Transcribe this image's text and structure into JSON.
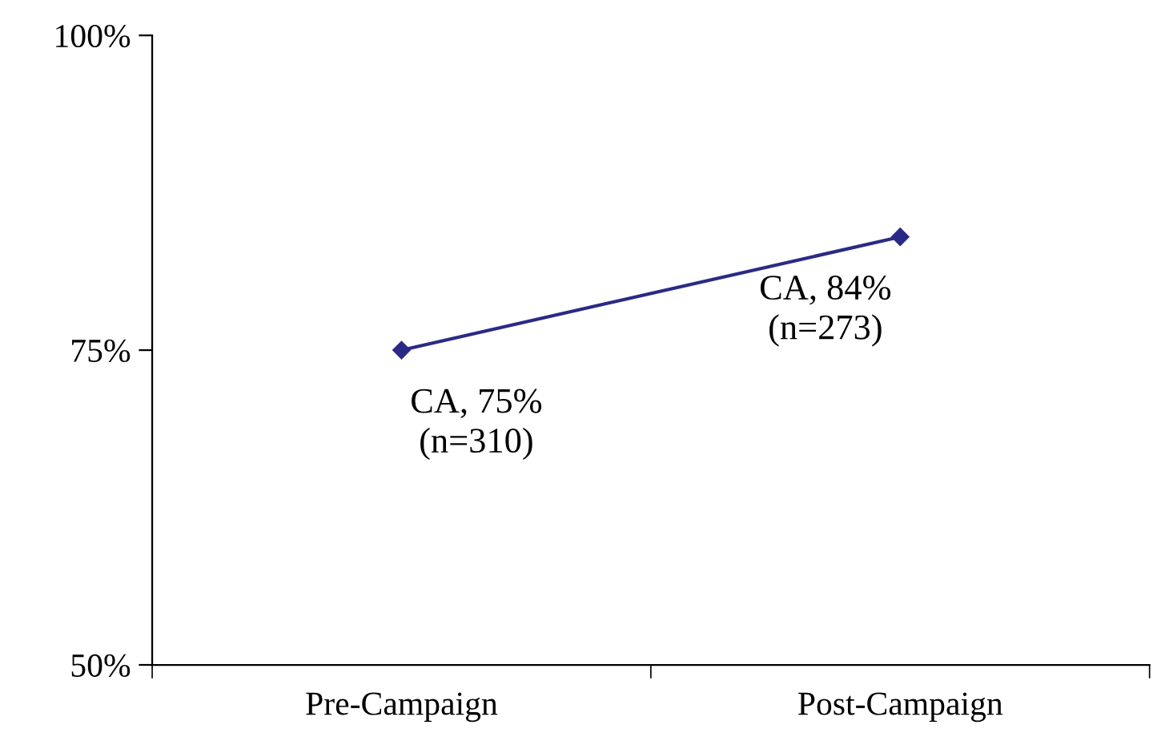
{
  "chart_data": {
    "type": "line",
    "categories": [
      "Pre-Campaign",
      "Post-Campaign"
    ],
    "series": [
      {
        "color": "#2a2a86",
        "values": [
          75,
          84
        ],
        "value_labels": [
          "CA, 75%\n(n=310)",
          "CA, 84%\n(n=273)"
        ]
      }
    ],
    "ylim": [
      50,
      100
    ],
    "yticks": [
      {
        "value": 50,
        "label": "50%"
      },
      {
        "value": 75,
        "label": "75%"
      },
      {
        "value": 100,
        "label": "100%"
      }
    ],
    "marker": "diamond",
    "line_style": "solid",
    "grid": false,
    "legend": false
  }
}
